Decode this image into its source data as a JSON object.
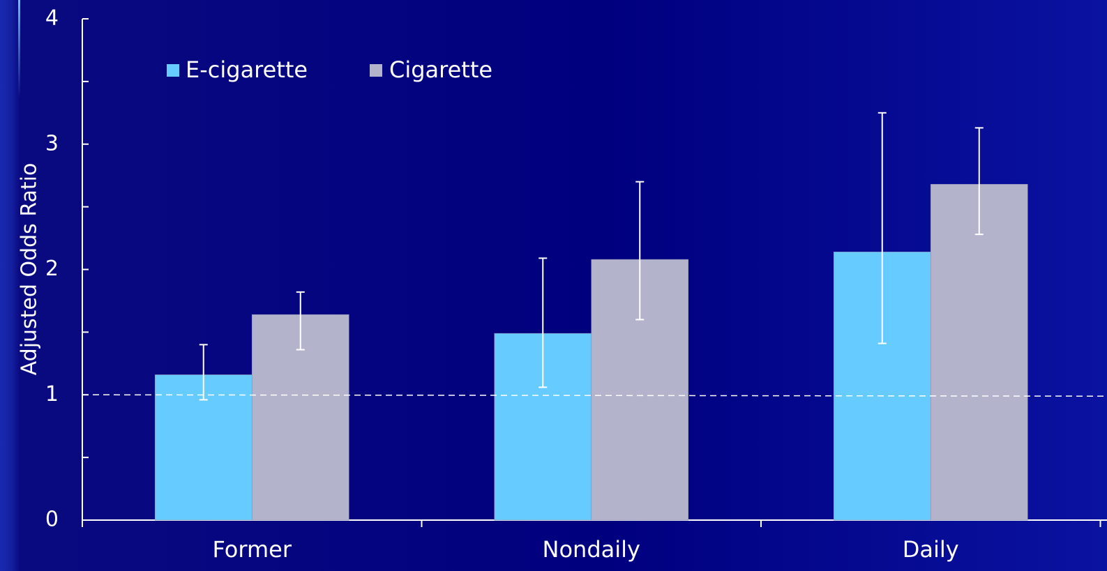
{
  "chart_data": {
    "type": "bar",
    "title": "",
    "xlabel": "",
    "ylabel": "Adjusted Odds Ratio",
    "ylim": [
      0,
      4
    ],
    "yticks": [
      0,
      1,
      2,
      3,
      4
    ],
    "ytick_labels": [
      "0",
      "1",
      "2",
      "3",
      "4"
    ],
    "categories": [
      "Former",
      "Nondaily",
      "Daily"
    ],
    "series": [
      {
        "name": "E-cigarette",
        "color": "#66ccff",
        "values": [
          1.16,
          1.49,
          2.14
        ],
        "ci_low": [
          0.96,
          1.06,
          1.41
        ],
        "ci_high": [
          1.4,
          2.09,
          3.25
        ]
      },
      {
        "name": "Cigarette",
        "color": "#b3b3cc",
        "values": [
          1.64,
          2.08,
          2.68
        ],
        "ci_low": [
          1.36,
          1.6,
          2.28
        ],
        "ci_high": [
          1.82,
          2.7,
          3.13
        ]
      }
    ],
    "reference_line": 1,
    "legend_position": "top-left",
    "grid": false
  }
}
